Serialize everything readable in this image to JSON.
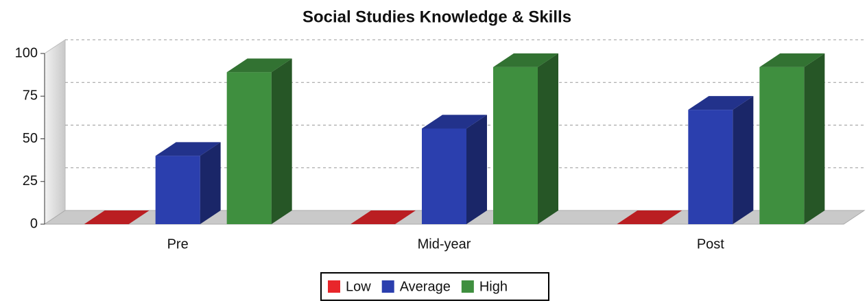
{
  "chart_data": {
    "type": "bar3d",
    "title": "Social Studies Knowledge & Skills",
    "categories": [
      "Pre",
      "Mid-year",
      "Post"
    ],
    "series": [
      {
        "name": "Low",
        "color": "#e8262b",
        "values": [
          0,
          0,
          0
        ]
      },
      {
        "name": "Average",
        "color": "#2b3fae",
        "values": [
          40,
          56,
          67
        ]
      },
      {
        "name": "High",
        "color": "#3f8f3f",
        "values": [
          89,
          92,
          92
        ]
      }
    ],
    "ylim": [
      0,
      100
    ],
    "yticks": [
      0,
      25,
      50,
      75,
      100
    ],
    "grid": true,
    "legend": "bottom"
  }
}
